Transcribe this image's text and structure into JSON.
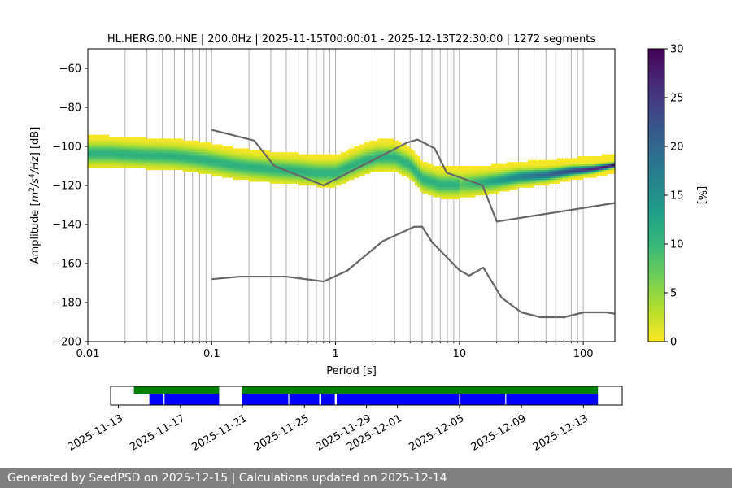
{
  "chart_data": {
    "type": "heatmap",
    "title": "HL.HERG.00.HNE | 200.0Hz | 2025-11-15T00:00:01 - 2025-12-13T22:30:00 | 1272 segments",
    "xlabel": "Period [s]",
    "ylabel": "Amplitude [m²/s⁴/Hz] [dB]",
    "xscale": "log",
    "xlim": [
      0.01,
      180
    ],
    "ylim": [
      -200,
      -50
    ],
    "xticks": [
      {
        "value": 0.01,
        "label": "0.01"
      },
      {
        "value": 0.1,
        "label": "0.1"
      },
      {
        "value": 1,
        "label": "1"
      },
      {
        "value": 10,
        "label": "10"
      },
      {
        "value": 100,
        "label": "100"
      }
    ],
    "yticks": [
      -200,
      -180,
      -160,
      -140,
      -120,
      -100,
      -80,
      -60
    ],
    "grid": "vertical log grid",
    "colorbar": {
      "label": "[%]",
      "min": 0,
      "max": 30,
      "ticks": [
        0,
        5,
        10,
        15,
        20,
        25,
        30
      ],
      "colormap": [
        "#fde725",
        "#b5de2b",
        "#6ece58",
        "#35b779",
        "#1f9e89",
        "#26828e",
        "#31688e",
        "#3e4989",
        "#482878",
        "#440154"
      ]
    },
    "mode_curve": [
      {
        "x": 0.01,
        "y": -104
      },
      {
        "x": 0.015,
        "y": -104
      },
      {
        "x": 0.02,
        "y": -104.5
      },
      {
        "x": 0.03,
        "y": -105
      },
      {
        "x": 0.05,
        "y": -105.5
      },
      {
        "x": 0.07,
        "y": -106.5
      },
      {
        "x": 0.1,
        "y": -108
      },
      {
        "x": 0.15,
        "y": -110
      },
      {
        "x": 0.2,
        "y": -111
      },
      {
        "x": 0.3,
        "y": -112
      },
      {
        "x": 0.5,
        "y": -113
      },
      {
        "x": 0.7,
        "y": -114
      },
      {
        "x": 1.0,
        "y": -114
      },
      {
        "x": 1.3,
        "y": -111
      },
      {
        "x": 1.7,
        "y": -108
      },
      {
        "x": 2.2,
        "y": -106
      },
      {
        "x": 3.0,
        "y": -106
      },
      {
        "x": 4.0,
        "y": -110
      },
      {
        "x": 5.0,
        "y": -117
      },
      {
        "x": 7.0,
        "y": -120
      },
      {
        "x": 10,
        "y": -120
      },
      {
        "x": 15,
        "y": -119
      },
      {
        "x": 20,
        "y": -118
      },
      {
        "x": 30,
        "y": -116
      },
      {
        "x": 50,
        "y": -115
      },
      {
        "x": 80,
        "y": -113
      },
      {
        "x": 120,
        "y": -112
      },
      {
        "x": 180,
        "y": -110
      }
    ],
    "noise_models": [
      {
        "name": "",
        "color": "#666666",
        "points": [
          {
            "x": 0.1,
            "y": -91.5
          },
          {
            "x": 0.22,
            "y": -97
          },
          {
            "x": 0.32,
            "y": -110
          },
          {
            "x": 0.8,
            "y": -120
          },
          {
            "x": 3.8,
            "y": -98
          },
          {
            "x": 4.6,
            "y": -96.5
          },
          {
            "x": 6.3,
            "y": -101
          },
          {
            "x": 7.9,
            "y": -113.5
          },
          {
            "x": 15.4,
            "y": -120
          },
          {
            "x": 20,
            "y": -138.5
          },
          {
            "x": 180,
            "y": -129
          }
        ]
      },
      {
        "name": "",
        "color": "#666666",
        "points": [
          {
            "x": 0.1,
            "y": -168
          },
          {
            "x": 0.17,
            "y": -166.7
          },
          {
            "x": 0.4,
            "y": -166.7
          },
          {
            "x": 0.8,
            "y": -169.2
          },
          {
            "x": 1.24,
            "y": -163.7
          },
          {
            "x": 2.4,
            "y": -148.6
          },
          {
            "x": 4.3,
            "y": -141.2
          },
          {
            "x": 5.0,
            "y": -141.1
          },
          {
            "x": 6.0,
            "y": -149
          },
          {
            "x": 10,
            "y": -163.4
          },
          {
            "x": 12,
            "y": -166.2
          },
          {
            "x": 15.6,
            "y": -162.1
          },
          {
            "x": 21.9,
            "y": -177.5
          },
          {
            "x": 31.6,
            "y": -185
          },
          {
            "x": 45,
            "y": -187.5
          },
          {
            "x": 70,
            "y": -187.5
          },
          {
            "x": 101,
            "y": -185
          },
          {
            "x": 154,
            "y": -185
          },
          {
            "x": 180,
            "y": -185.7
          }
        ]
      }
    ],
    "timeline": {
      "ticks": [
        "2025-11-13",
        "2025-11-17",
        "2025-11-21",
        "2025-11-25",
        "2025-11-29",
        "2025-12-01",
        "2025-12-05",
        "2025-12-09",
        "2025-12-13"
      ],
      "range": [
        "2025-11-12T12:00",
        "2025-12-15T12:00"
      ],
      "green_segments": [
        [
          "2025-11-14T00:00",
          "2025-11-19T12:00"
        ],
        [
          "2025-11-21T00:00",
          "2025-12-13T22:30"
        ]
      ],
      "blue_segments": [
        [
          "2025-11-15T00:00",
          "2025-11-15T22:00"
        ],
        [
          "2025-11-15T23:30",
          "2025-11-19T12:00"
        ],
        [
          "2025-11-21T00:00",
          "2025-11-23T23:00"
        ],
        [
          "2025-11-24T00:30",
          "2025-11-25T23:00"
        ],
        [
          "2025-11-26T02:00",
          "2025-11-26T23:00"
        ],
        [
          "2025-11-27T02:00",
          "2025-12-04T23:30"
        ],
        [
          "2025-12-05T01:30",
          "2025-12-07T23:00"
        ],
        [
          "2025-12-08T00:30",
          "2025-12-13T22:30"
        ]
      ],
      "green_color": "#008000",
      "blue_color": "#0000ff"
    }
  },
  "footer": {
    "text": "Generated by SeedPSD on 2025-12-15 | Calculations updated on 2025-12-14"
  }
}
